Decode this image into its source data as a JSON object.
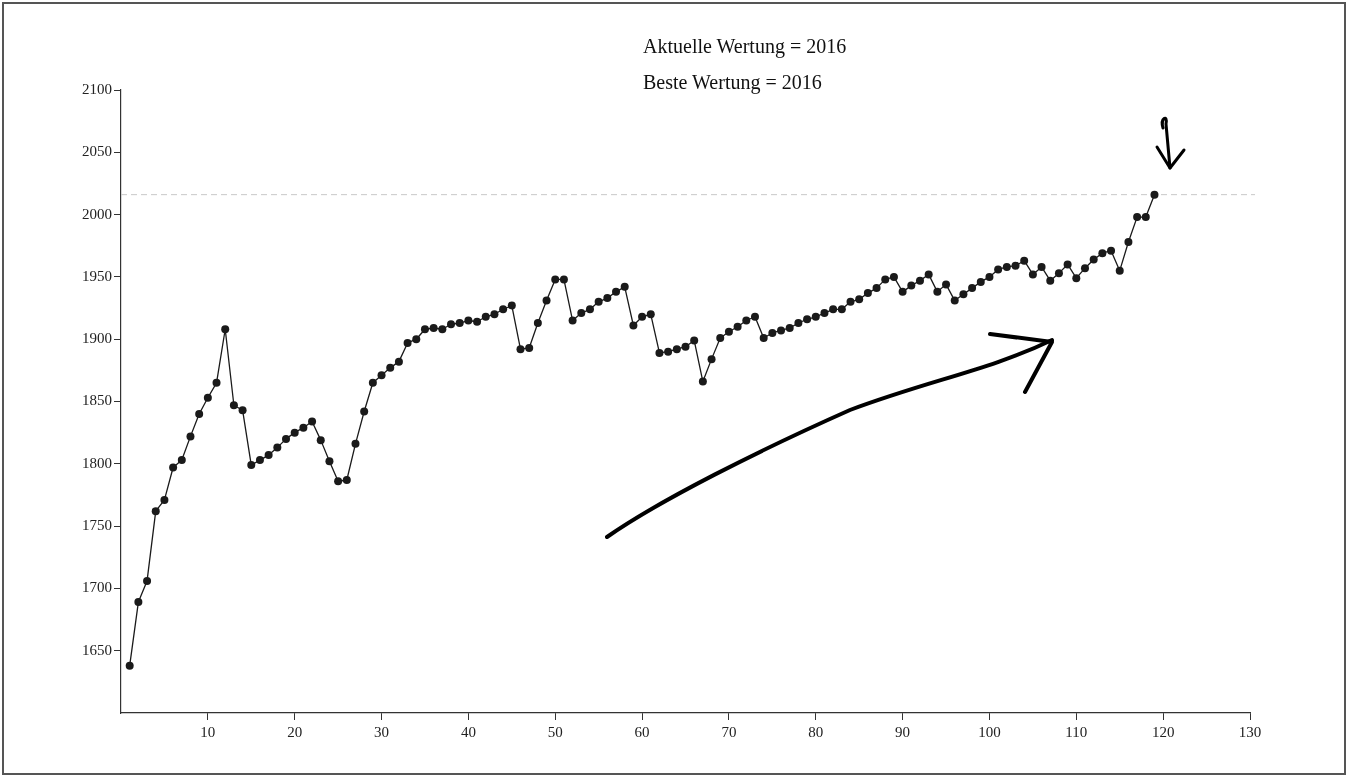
{
  "chart_data": {
    "type": "line",
    "x": [
      1,
      2,
      3,
      4,
      5,
      6,
      7,
      8,
      9,
      10,
      11,
      12,
      13,
      14,
      15,
      16,
      17,
      18,
      19,
      20,
      21,
      22,
      23,
      24,
      25,
      26,
      27,
      28,
      29,
      30,
      31,
      32,
      33,
      34,
      35,
      36,
      37,
      38,
      39,
      40,
      41,
      42,
      43,
      44,
      45,
      46,
      47,
      48,
      49,
      50,
      51,
      52,
      53,
      54,
      55,
      56,
      57,
      58,
      59,
      60,
      61,
      62,
      63,
      64,
      65,
      66,
      67,
      68,
      69,
      70,
      71,
      72,
      73,
      74,
      75,
      76,
      77,
      78,
      79,
      80,
      81,
      82,
      83,
      84,
      85,
      86,
      87,
      88,
      89,
      90,
      91,
      92,
      93,
      94,
      95,
      96,
      97,
      98,
      99,
      100,
      101,
      102,
      103,
      104,
      105,
      106,
      107,
      108,
      109,
      110,
      111,
      112,
      113,
      114,
      115,
      116,
      117,
      118,
      119
    ],
    "series": [
      {
        "color": "#1a1a1a",
        "values": [
          1638,
          1689,
          1706,
          1762,
          1771,
          1797,
          1803,
          1822,
          1840,
          1853,
          1865,
          1908,
          1847,
          1843,
          1799,
          1803,
          1807,
          1813,
          1820,
          1825,
          1829,
          1834,
          1819,
          1802,
          1786,
          1787,
          1816,
          1842,
          1865,
          1871,
          1877,
          1882,
          1897,
          1900,
          1908,
          1909,
          1908,
          1912,
          1913,
          1915,
          1914,
          1918,
          1920,
          1924,
          1927,
          1892,
          1893,
          1913,
          1931,
          1948,
          1948,
          1915,
          1921,
          1924,
          1930,
          1933,
          1938,
          1942,
          1911,
          1918,
          1920,
          1889,
          1890,
          1892,
          1894,
          1899,
          1866,
          1884,
          1901,
          1906,
          1910,
          1915,
          1918,
          1901,
          1905,
          1907,
          1909,
          1913,
          1916,
          1918,
          1921,
          1924,
          1924,
          1930,
          1932,
          1937,
          1941,
          1948,
          1950,
          1938,
          1943,
          1947,
          1952,
          1938,
          1944,
          1931,
          1936,
          1941,
          1946,
          1950,
          1956,
          1958,
          1959,
          1963,
          1952,
          1958,
          1947,
          1953,
          1960,
          1949,
          1957,
          1964,
          1969,
          1971,
          1955,
          1978,
          1998,
          1998,
          2016
        ]
      }
    ],
    "xlim": [
      0,
      130
    ],
    "xticks": [
      10,
      20,
      30,
      40,
      50,
      60,
      70,
      80,
      90,
      100,
      110,
      120,
      130
    ],
    "ylim": [
      1600,
      2100
    ],
    "yticks": [
      1650,
      1700,
      1750,
      1800,
      1850,
      1900,
      1950,
      2000,
      2050,
      2100
    ],
    "ref_lines": [
      {
        "axis": "y",
        "value": 2016,
        "color": "#c8c8c8",
        "line_style": "dashed"
      }
    ],
    "annotations": [
      "Aktuelle Wertung = 2016",
      "Beste Wertung = 2016"
    ],
    "marker": "circle",
    "line_style": "solid",
    "grid": false,
    "legend": false
  }
}
